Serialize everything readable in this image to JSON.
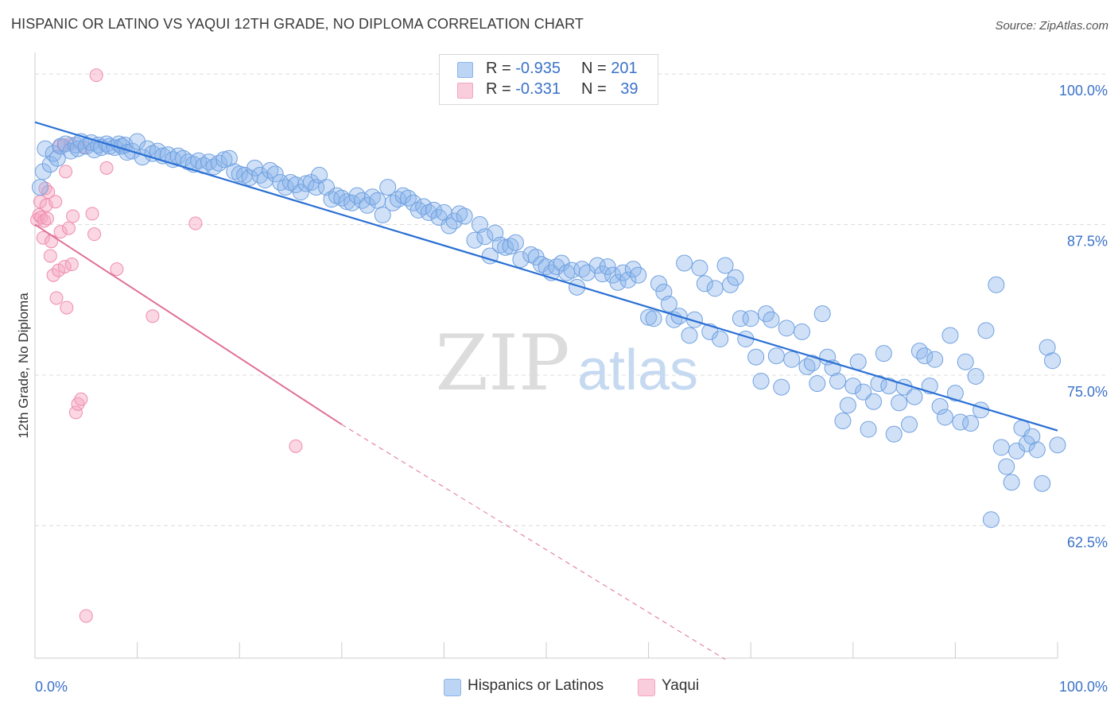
{
  "title": "HISPANIC OR LATINO VS YAQUI 12TH GRADE, NO DIPLOMA CORRELATION CHART",
  "source": "Source: ZipAtlas.com",
  "watermark": {
    "zip": "ZIP",
    "atlas": "atlas"
  },
  "legend": {
    "rows": [
      {
        "r_label": "R = ",
        "r_value": "-0.935",
        "n_label": "N = ",
        "n_value": "201"
      },
      {
        "r_label": "R = ",
        "r_value": " -0.331",
        "n_label": "N = ",
        "n_value": "39"
      }
    ]
  },
  "bottom_legend": [
    "Hispanics or Latinos",
    "Yaqui"
  ],
  "colors": {
    "blue": "#8ab4ea",
    "blue_line": "#2a6fd4",
    "pink": "#f4a6bf",
    "pink_line": "#e07098",
    "grid": "#dcdcdc",
    "axis_label": "#3a72c8"
  },
  "chart_data": {
    "type": "scatter",
    "title": "HISPANIC OR LATINO VS YAQUI 12TH GRADE, NO DIPLOMA CORRELATION CHART",
    "xlabel": "",
    "ylabel": "12th Grade, No Diploma",
    "x_tick_labels": [
      "0.0%",
      "100.0%"
    ],
    "y_tick_labels": [
      "100.0%",
      "87.5%",
      "75.0%",
      "62.5%"
    ],
    "y_ticks": [
      100.0,
      87.5,
      75.0,
      62.5
    ],
    "xlim": [
      0,
      100
    ],
    "ylim": [
      51.5,
      101
    ],
    "grid": "horizontal dashed",
    "legend_placement": "top-center",
    "series": [
      {
        "name": "Hispanics or Latinos",
        "color": "#8ab4ea",
        "trend": {
          "x": [
            0,
            100
          ],
          "y": [
            96.0,
            70.4
          ]
        },
        "points": [
          [
            0.5,
            90.6
          ],
          [
            0.8,
            91.9
          ],
          [
            1.0,
            93.8
          ],
          [
            1.5,
            92.5
          ],
          [
            1.8,
            93.4
          ],
          [
            2.2,
            93.0
          ],
          [
            2.5,
            94.0
          ],
          [
            3.0,
            94.2
          ],
          [
            3.5,
            93.6
          ],
          [
            4.0,
            94.1
          ],
          [
            4.2,
            93.8
          ],
          [
            4.5,
            94.4
          ],
          [
            5.0,
            94.0
          ],
          [
            5.5,
            94.3
          ],
          [
            5.8,
            93.7
          ],
          [
            6.2,
            94.1
          ],
          [
            6.5,
            93.9
          ],
          [
            7.0,
            94.2
          ],
          [
            7.3,
            94.0
          ],
          [
            7.8,
            93.9
          ],
          [
            8.2,
            94.2
          ],
          [
            8.5,
            94.0
          ],
          [
            8.8,
            94.1
          ],
          [
            9.0,
            93.5
          ],
          [
            9.5,
            93.6
          ],
          [
            10.0,
            94.4
          ],
          [
            10.5,
            93.1
          ],
          [
            11.0,
            93.8
          ],
          [
            11.5,
            93.4
          ],
          [
            12.0,
            93.6
          ],
          [
            12.5,
            93.2
          ],
          [
            13.0,
            93.3
          ],
          [
            13.5,
            92.9
          ],
          [
            14.0,
            93.2
          ],
          [
            14.5,
            93.0
          ],
          [
            15.0,
            92.7
          ],
          [
            15.5,
            92.5
          ],
          [
            16.0,
            92.8
          ],
          [
            16.5,
            92.4
          ],
          [
            17.0,
            92.7
          ],
          [
            17.5,
            92.3
          ],
          [
            18.0,
            92.6
          ],
          [
            18.5,
            92.9
          ],
          [
            19.0,
            93.0
          ],
          [
            19.5,
            91.9
          ],
          [
            20.0,
            91.7
          ],
          [
            20.5,
            91.6
          ],
          [
            21.0,
            91.4
          ],
          [
            21.5,
            92.2
          ],
          [
            22.0,
            91.6
          ],
          [
            22.5,
            91.2
          ],
          [
            23.0,
            92.0
          ],
          [
            23.5,
            91.7
          ],
          [
            24.0,
            91.0
          ],
          [
            24.5,
            90.6
          ],
          [
            25.0,
            91.0
          ],
          [
            25.5,
            90.8
          ],
          [
            26.0,
            90.2
          ],
          [
            26.5,
            90.9
          ],
          [
            27.0,
            91.0
          ],
          [
            27.5,
            90.6
          ],
          [
            27.8,
            91.6
          ],
          [
            28.5,
            90.6
          ],
          [
            29.0,
            89.6
          ],
          [
            29.5,
            89.9
          ],
          [
            30.0,
            89.7
          ],
          [
            30.5,
            89.4
          ],
          [
            31.0,
            89.3
          ],
          [
            31.5,
            89.9
          ],
          [
            32.0,
            89.5
          ],
          [
            32.5,
            89.1
          ],
          [
            33.0,
            89.8
          ],
          [
            33.5,
            89.5
          ],
          [
            34.0,
            88.3
          ],
          [
            34.5,
            90.6
          ],
          [
            35.0,
            89.3
          ],
          [
            35.5,
            89.6
          ],
          [
            36.0,
            89.9
          ],
          [
            36.5,
            89.7
          ],
          [
            37.0,
            89.3
          ],
          [
            37.5,
            88.7
          ],
          [
            38.0,
            89.0
          ],
          [
            38.5,
            88.5
          ],
          [
            39.0,
            88.7
          ],
          [
            39.5,
            88.1
          ],
          [
            40.0,
            88.5
          ],
          [
            40.5,
            87.4
          ],
          [
            41.0,
            87.8
          ],
          [
            41.5,
            88.4
          ],
          [
            42.0,
            88.2
          ],
          [
            43.0,
            86.2
          ],
          [
            43.5,
            87.5
          ],
          [
            44.0,
            86.5
          ],
          [
            44.5,
            84.9
          ],
          [
            45.0,
            86.8
          ],
          [
            45.5,
            85.8
          ],
          [
            46.0,
            85.6
          ],
          [
            46.5,
            85.7
          ],
          [
            47.0,
            86.0
          ],
          [
            47.5,
            84.6
          ],
          [
            48.5,
            85.0
          ],
          [
            49.0,
            84.8
          ],
          [
            49.5,
            84.2
          ],
          [
            50.0,
            84.0
          ],
          [
            50.5,
            83.5
          ],
          [
            51.0,
            84.0
          ],
          [
            51.5,
            84.3
          ],
          [
            52.0,
            83.5
          ],
          [
            52.5,
            83.7
          ],
          [
            53.0,
            82.3
          ],
          [
            53.5,
            83.8
          ],
          [
            54.0,
            83.5
          ],
          [
            55.0,
            84.1
          ],
          [
            55.5,
            83.4
          ],
          [
            56.0,
            84.0
          ],
          [
            56.5,
            83.3
          ],
          [
            57.0,
            82.7
          ],
          [
            57.5,
            83.5
          ],
          [
            58.0,
            82.9
          ],
          [
            58.5,
            83.8
          ],
          [
            59.0,
            83.3
          ],
          [
            60.0,
            79.8
          ],
          [
            60.5,
            79.7
          ],
          [
            61.0,
            82.6
          ],
          [
            61.5,
            81.9
          ],
          [
            62.0,
            80.9
          ],
          [
            62.5,
            79.6
          ],
          [
            63.0,
            79.9
          ],
          [
            63.5,
            84.3
          ],
          [
            64.0,
            78.3
          ],
          [
            64.5,
            79.6
          ],
          [
            65.0,
            83.9
          ],
          [
            65.5,
            82.6
          ],
          [
            66.0,
            78.6
          ],
          [
            66.5,
            82.2
          ],
          [
            67.0,
            78.0
          ],
          [
            67.5,
            84.1
          ],
          [
            68.0,
            82.5
          ],
          [
            68.5,
            83.1
          ],
          [
            69.0,
            79.7
          ],
          [
            69.5,
            78.0
          ],
          [
            70.0,
            79.7
          ],
          [
            70.5,
            76.5
          ],
          [
            71.0,
            74.5
          ],
          [
            71.5,
            80.1
          ],
          [
            72.0,
            79.6
          ],
          [
            72.5,
            76.6
          ],
          [
            73.0,
            74.0
          ],
          [
            73.5,
            78.9
          ],
          [
            74.0,
            76.3
          ],
          [
            75.0,
            78.6
          ],
          [
            75.5,
            75.7
          ],
          [
            76.0,
            76.0
          ],
          [
            76.5,
            74.3
          ],
          [
            77.0,
            80.1
          ],
          [
            77.5,
            76.5
          ],
          [
            78.0,
            75.6
          ],
          [
            78.5,
            74.5
          ],
          [
            79.0,
            71.2
          ],
          [
            79.5,
            72.5
          ],
          [
            80.0,
            74.1
          ],
          [
            80.5,
            76.1
          ],
          [
            81.0,
            73.6
          ],
          [
            81.5,
            70.5
          ],
          [
            82.0,
            72.8
          ],
          [
            82.5,
            74.3
          ],
          [
            83.0,
            76.8
          ],
          [
            83.5,
            74.1
          ],
          [
            84.0,
            70.1
          ],
          [
            84.5,
            72.7
          ],
          [
            85.0,
            74.0
          ],
          [
            85.5,
            70.9
          ],
          [
            86.0,
            73.2
          ],
          [
            86.5,
            77.0
          ],
          [
            87.0,
            76.6
          ],
          [
            87.5,
            74.1
          ],
          [
            88.0,
            76.3
          ],
          [
            88.5,
            72.4
          ],
          [
            89.0,
            71.5
          ],
          [
            89.5,
            78.3
          ],
          [
            90.0,
            73.5
          ],
          [
            90.5,
            71.1
          ],
          [
            91.0,
            76.1
          ],
          [
            91.5,
            71.0
          ],
          [
            92.0,
            74.9
          ],
          [
            92.5,
            72.1
          ],
          [
            93.0,
            78.7
          ],
          [
            93.5,
            63.0
          ],
          [
            94.0,
            82.5
          ],
          [
            94.5,
            69.0
          ],
          [
            95.0,
            67.4
          ],
          [
            95.5,
            66.1
          ],
          [
            96.0,
            68.7
          ],
          [
            96.5,
            70.6
          ],
          [
            97.0,
            69.3
          ],
          [
            97.5,
            69.9
          ],
          [
            98.0,
            68.8
          ],
          [
            98.5,
            66.0
          ],
          [
            99.0,
            77.3
          ],
          [
            99.5,
            76.2
          ],
          [
            100.0,
            69.2
          ]
        ]
      },
      {
        "name": "Yaqui",
        "color": "#f4a6bf",
        "trend": {
          "x": [
            0,
            30,
            67.5
          ],
          "y": [
            87.5,
            70.9,
            51.4
          ]
        },
        "points": [
          [
            0.2,
            87.9
          ],
          [
            0.4,
            88.3
          ],
          [
            0.5,
            89.4
          ],
          [
            0.6,
            88.1
          ],
          [
            0.8,
            86.4
          ],
          [
            0.9,
            87.8
          ],
          [
            1.0,
            90.5
          ],
          [
            1.1,
            89.1
          ],
          [
            1.2,
            88.0
          ],
          [
            1.5,
            84.9
          ],
          [
            1.6,
            86.1
          ],
          [
            1.8,
            83.3
          ],
          [
            2.0,
            89.4
          ],
          [
            2.1,
            81.4
          ],
          [
            2.3,
            83.7
          ],
          [
            2.5,
            86.9
          ],
          [
            2.8,
            94.1
          ],
          [
            2.9,
            84.0
          ],
          [
            3.0,
            91.9
          ],
          [
            3.1,
            80.6
          ],
          [
            3.3,
            87.2
          ],
          [
            3.5,
            94.2
          ],
          [
            3.6,
            84.2
          ],
          [
            3.7,
            88.2
          ],
          [
            4.0,
            71.9
          ],
          [
            4.2,
            72.6
          ],
          [
            4.5,
            73.0
          ],
          [
            4.8,
            93.9
          ],
          [
            5.0,
            55.0
          ],
          [
            5.6,
            88.4
          ],
          [
            5.8,
            86.7
          ],
          [
            6.0,
            99.9
          ],
          [
            7.0,
            92.2
          ],
          [
            8.0,
            83.8
          ],
          [
            11.5,
            79.9
          ],
          [
            15.7,
            87.6
          ],
          [
            25.5,
            69.1
          ],
          [
            2.4,
            94.0
          ],
          [
            1.3,
            90.2
          ]
        ]
      }
    ]
  }
}
